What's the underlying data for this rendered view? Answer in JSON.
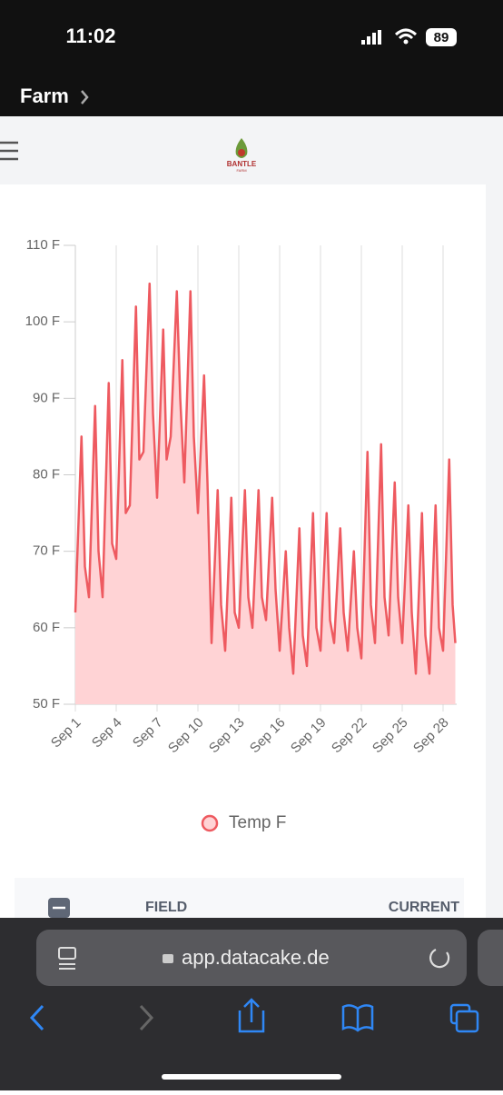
{
  "status": {
    "time": "11:02",
    "battery": "89"
  },
  "nav": {
    "back": "Farm"
  },
  "logo": {
    "name": "BANTLE",
    "sub": "FARM"
  },
  "chart_data": {
    "type": "area",
    "x": [
      1,
      1.45,
      1.7,
      2,
      2.45,
      2.7,
      3,
      3.45,
      3.7,
      4,
      4.45,
      4.7,
      5,
      5.45,
      5.7,
      6,
      6.45,
      6.7,
      7,
      7.45,
      7.7,
      8,
      8.45,
      8.7,
      9,
      9.45,
      9.7,
      10,
      10.45,
      10.7,
      11,
      11.45,
      11.7,
      12,
      12.45,
      12.7,
      13,
      13.45,
      13.7,
      14,
      14.45,
      14.7,
      15,
      15.45,
      15.7,
      16,
      16.45,
      16.7,
      17,
      17.45,
      17.7,
      18,
      18.45,
      18.7,
      19,
      19.45,
      19.7,
      20,
      20.45,
      20.7,
      21,
      21.45,
      21.7,
      22,
      22.45,
      22.7,
      23,
      23.45,
      23.7,
      24,
      24.45,
      24.7,
      25,
      25.45,
      25.7,
      26,
      26.45,
      26.7,
      27,
      27.45,
      27.7,
      28,
      28.45,
      28.7,
      28.9
    ],
    "series": [
      {
        "name": "Temp F",
        "color": "#ee5a60",
        "fill": "#ffd3d5",
        "values": [
          62,
          85,
          68,
          64,
          89,
          70,
          64,
          92,
          71,
          69,
          95,
          75,
          76,
          102,
          82,
          83,
          105,
          88,
          77,
          99,
          82,
          85,
          104,
          90,
          79,
          104,
          85,
          75,
          93,
          79,
          58,
          78,
          63,
          57,
          77,
          62,
          60,
          78,
          64,
          60,
          78,
          64,
          61,
          77,
          65,
          57,
          70,
          60,
          54,
          73,
          59,
          55,
          75,
          60,
          57,
          75,
          61,
          58,
          73,
          62,
          57,
          70,
          60,
          56,
          83,
          63,
          58,
          84,
          64,
          59,
          79,
          64,
          58,
          76,
          62,
          54,
          75,
          59,
          54,
          76,
          60,
          57,
          82,
          63,
          58
        ]
      }
    ],
    "xlim": [
      1,
      29
    ],
    "xticks": [
      {
        "value": 1,
        "label": "Sep 1"
      },
      {
        "value": 4,
        "label": "Sep 4"
      },
      {
        "value": 7,
        "label": "Sep 7"
      },
      {
        "value": 10,
        "label": "Sep 10"
      },
      {
        "value": 13,
        "label": "Sep 13"
      },
      {
        "value": 16,
        "label": "Sep 16"
      },
      {
        "value": 19,
        "label": "Sep 19"
      },
      {
        "value": 22,
        "label": "Sep 22"
      },
      {
        "value": 25,
        "label": "Sep 25"
      },
      {
        "value": 28,
        "label": "Sep 28"
      }
    ],
    "ylim": [
      50,
      110
    ],
    "yticks": [
      {
        "value": 50,
        "label": "50 F"
      },
      {
        "value": 60,
        "label": "60 F"
      },
      {
        "value": 70,
        "label": "70 F"
      },
      {
        "value": 80,
        "label": "80 F"
      },
      {
        "value": 90,
        "label": "90 F"
      },
      {
        "value": 100,
        "label": "100 F"
      },
      {
        "value": 110,
        "label": "110 F"
      }
    ],
    "grid": "x",
    "legend": "bottom"
  },
  "table": {
    "headers": [
      "FIELD",
      "CURRENT"
    ]
  },
  "browser": {
    "url": "app.datacake.de"
  }
}
